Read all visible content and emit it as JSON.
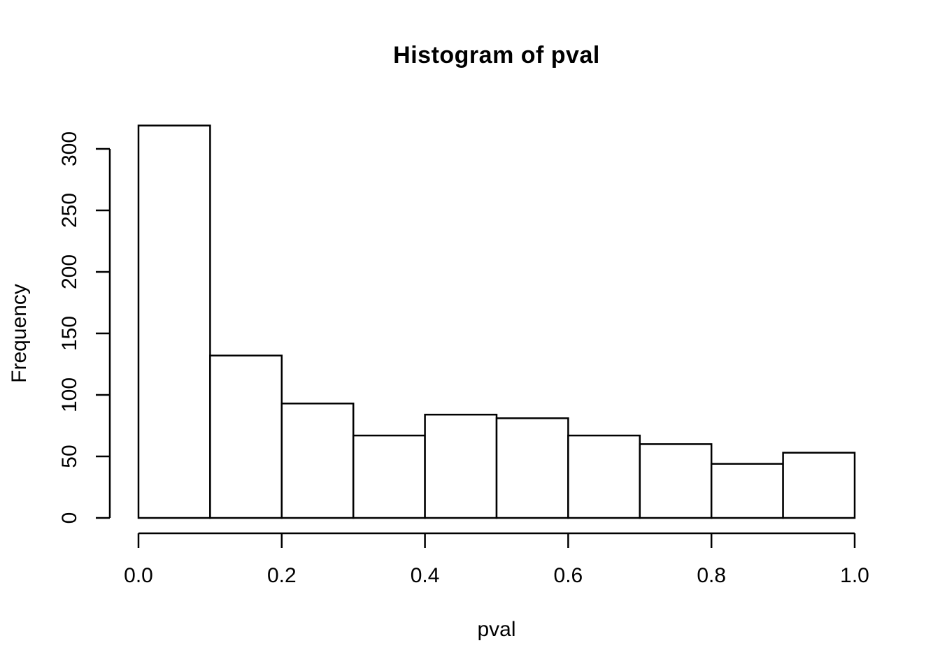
{
  "title": "Histogram of pval",
  "chart_data": {
    "type": "bar",
    "subtype": "histogram",
    "title": "Histogram of pval",
    "xlabel": "pval",
    "ylabel": "Frequency",
    "bin_edges": [
      0.0,
      0.1,
      0.2,
      0.3,
      0.4,
      0.5,
      0.6,
      0.7,
      0.8,
      0.9,
      1.0
    ],
    "counts": [
      319,
      132,
      93,
      67,
      84,
      81,
      67,
      60,
      44,
      53
    ],
    "total_observations": 1000,
    "xlim": [
      0.0,
      1.0
    ],
    "ylim": [
      0,
      300
    ],
    "xticks": {
      "values": [
        0.0,
        0.2,
        0.4,
        0.6,
        0.8,
        1.0
      ],
      "labels": [
        "0.0",
        "0.2",
        "0.4",
        "0.6",
        "0.8",
        "1.0"
      ]
    },
    "yticks": {
      "values": [
        0,
        50,
        100,
        150,
        200,
        250,
        300
      ],
      "labels": [
        "0",
        "50",
        "100",
        "150",
        "200",
        "250",
        "300"
      ]
    },
    "grid": false,
    "legend": null,
    "bar_fill": "#ffffff",
    "stroke": "#000000",
    "background": "#ffffff"
  }
}
